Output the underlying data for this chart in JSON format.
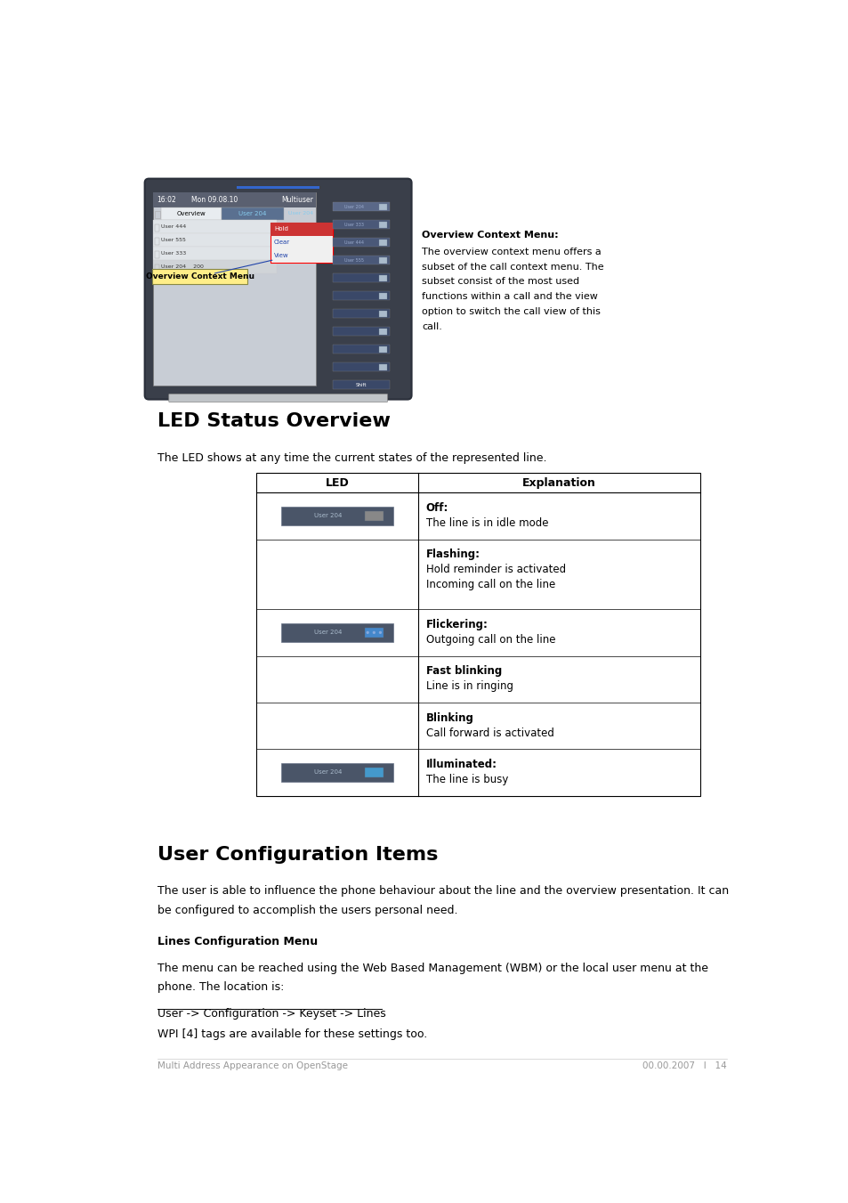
{
  "bg_color": "#ffffff",
  "section1_title": "LED Status Overview",
  "section1_intro": "The LED shows at any time the current states of the represented line.",
  "table_header_led": "LED",
  "table_header_explanation": "Explanation",
  "table_rows": [
    {
      "has_image": true,
      "image_type": "off",
      "explanation_bold": "Off:",
      "explanation_normal": "The line is in idle mode"
    },
    {
      "has_image": false,
      "image_type": null,
      "explanation_bold": "Flashing:",
      "explanation_normal": "Hold reminder is activated\nIncoming call on the line"
    },
    {
      "has_image": true,
      "image_type": "flickering",
      "explanation_bold": "Flickering:",
      "explanation_normal": "Outgoing call on the line"
    },
    {
      "has_image": false,
      "image_type": null,
      "explanation_bold": "Fast blinking",
      "explanation_normal": "Line is in ringing"
    },
    {
      "has_image": false,
      "image_type": null,
      "explanation_bold": "Blinking",
      "explanation_normal": "Call forward is activated"
    },
    {
      "has_image": true,
      "image_type": "illuminated",
      "explanation_bold": "Illuminated:",
      "explanation_normal": "The line is busy"
    }
  ],
  "section2_title": "User Configuration Items",
  "section2_intro": "The user is able to influence the phone behaviour about the line and the overview presentation. It can\nbe configured to accomplish the users personal need.",
  "subsection_title": "Lines Configuration Menu",
  "subsection_intro": "The menu can be reached using the Web Based Management (WBM) or the local user menu at the\nphone. The location is:",
  "link_text": "User -> Configuration -> Keyset -> Lines",
  "final_text": "WPI [4] tags are available for these settings too.",
  "context_menu_title": "Overview Context Menu:",
  "context_menu_text": "The overview context menu offers a\nsubset of the call context menu. The\nsubset consist of the most used\nfunctions within a call and the view\noption to switch the call view of this\ncall.",
  "footer_left": "Multi Address Appearance on OpenStage",
  "footer_right": "00.00.2007   I   14"
}
